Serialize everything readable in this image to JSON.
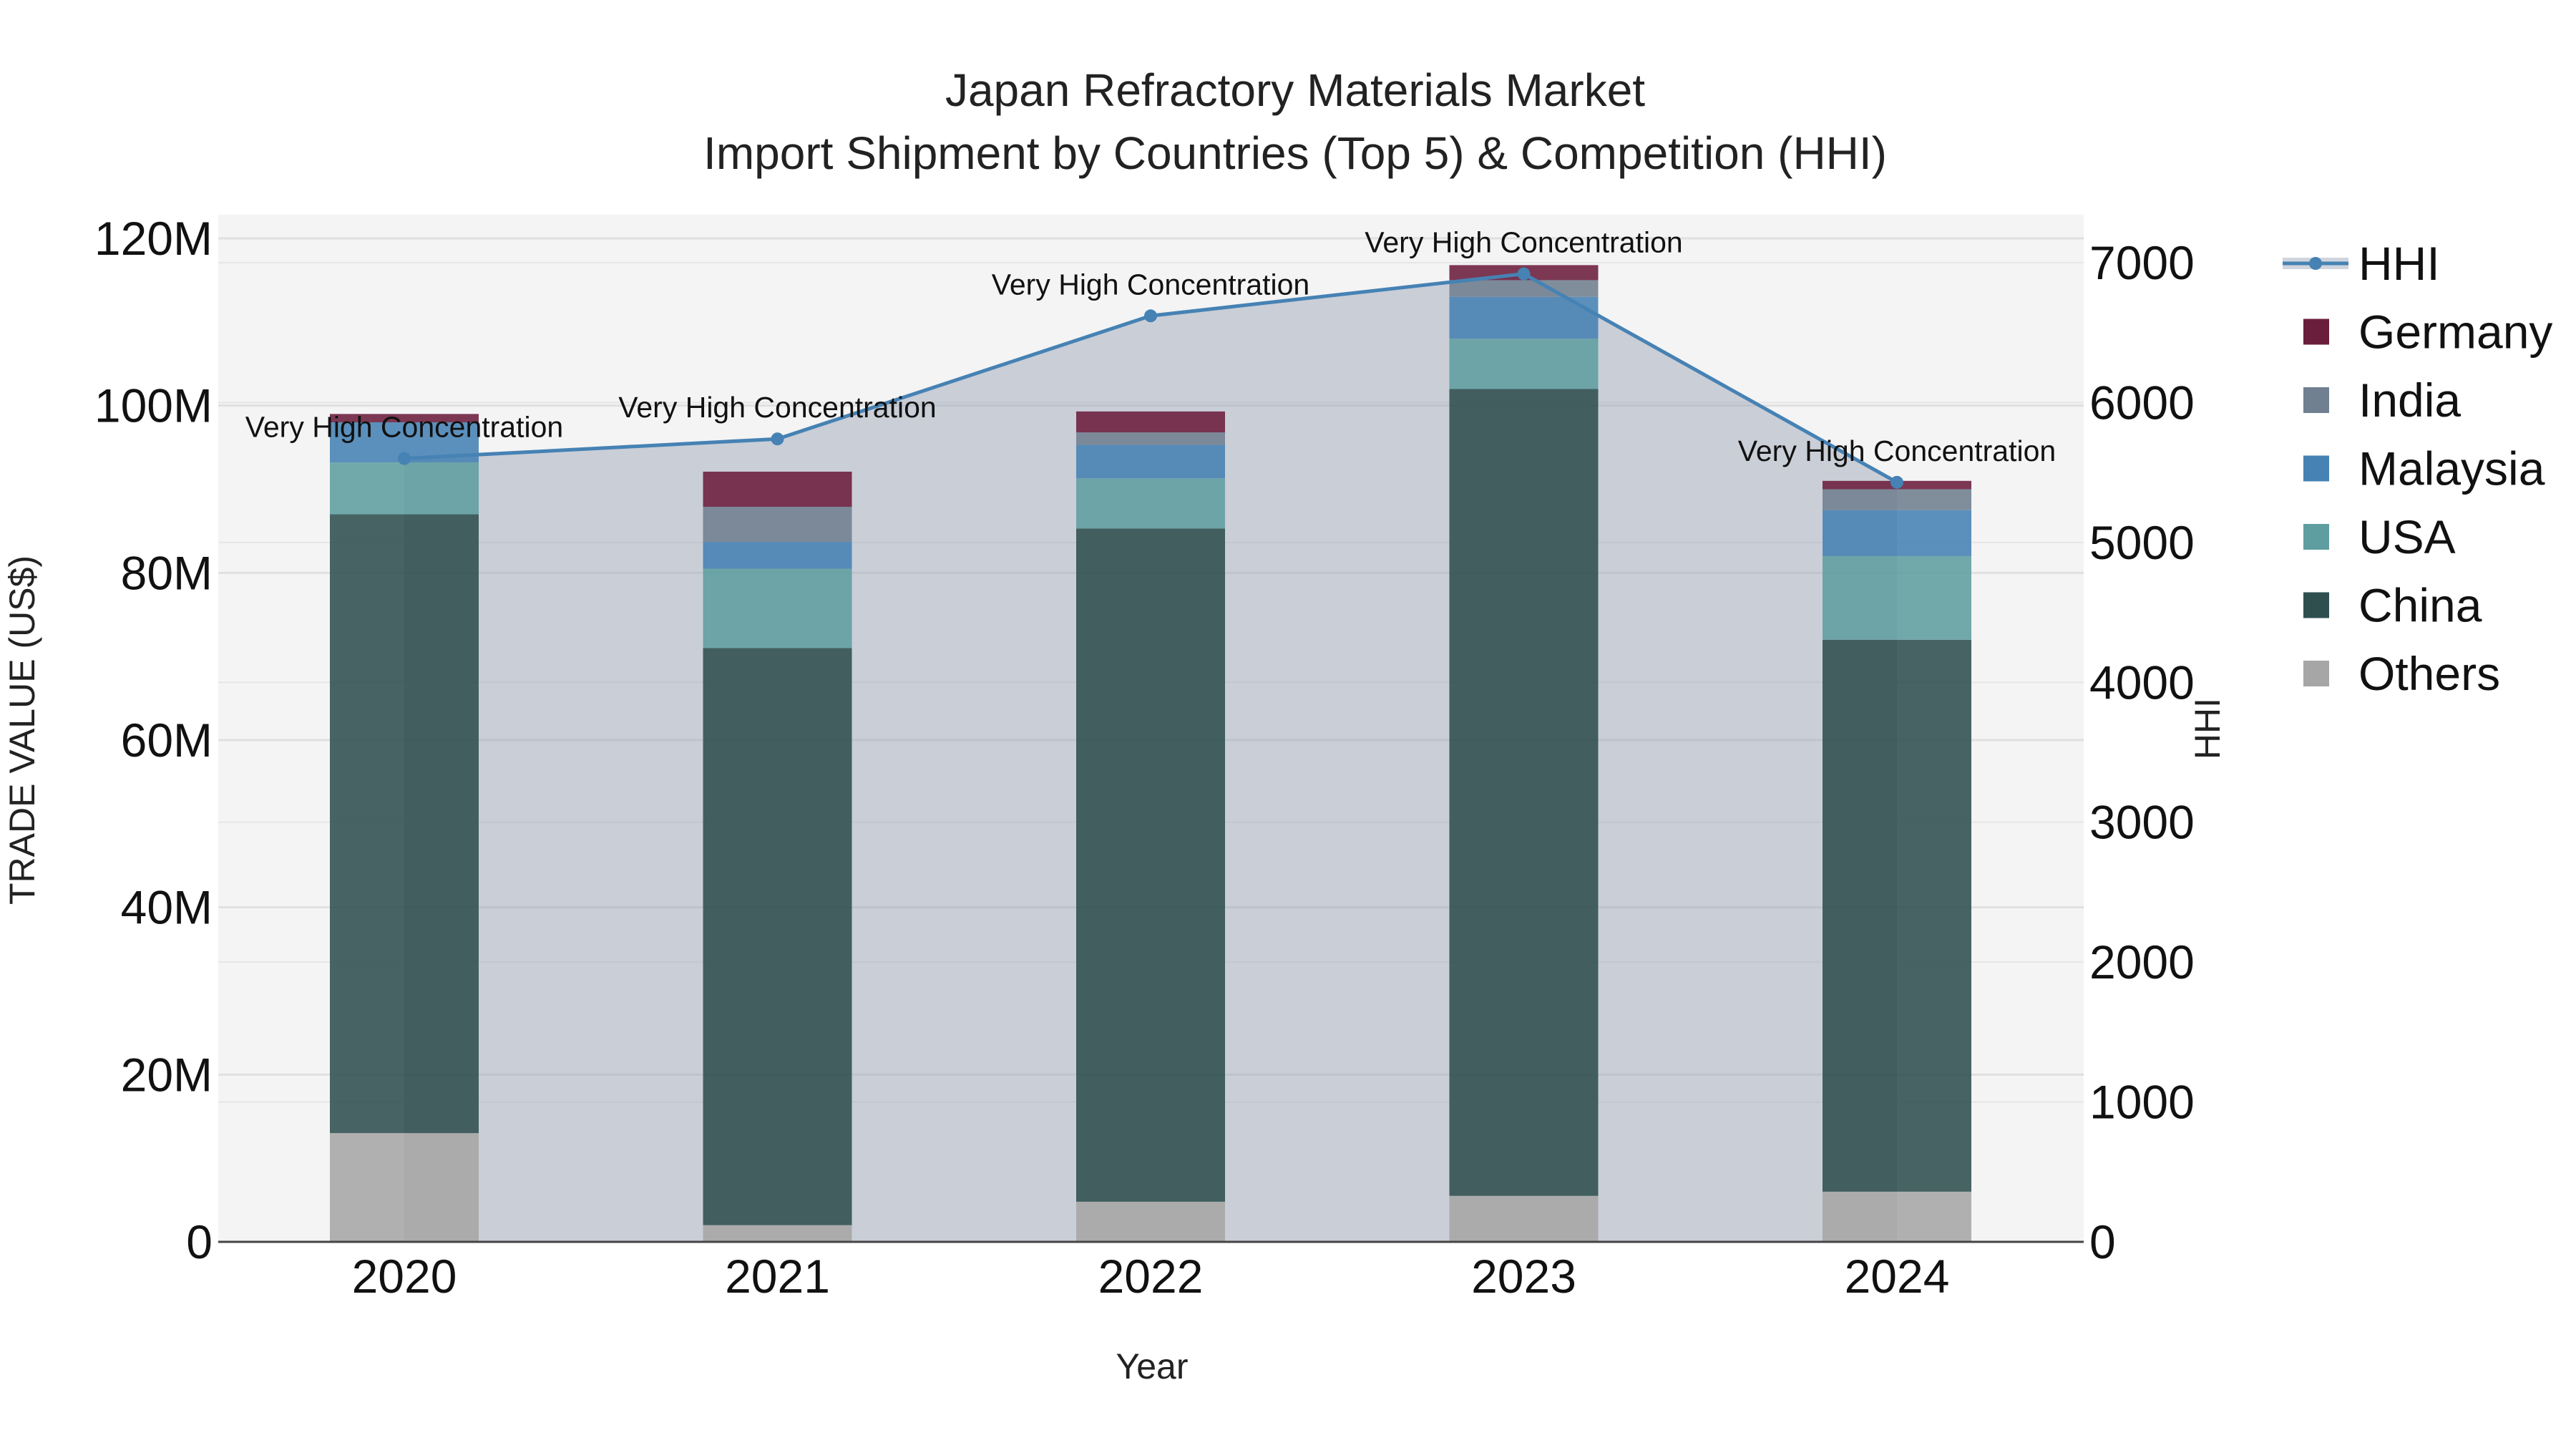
{
  "chart_data": {
    "type": "bar",
    "title_lines": [
      "Japan Refractory Materials Market",
      "Import Shipment by Countries (Top 5) & Competition (HHI)"
    ],
    "xlabel": "Year",
    "ylabel": "TRADE VALUE (US$)",
    "y2label": "HHI",
    "categories": [
      "2020",
      "2021",
      "2022",
      "2023",
      "2024"
    ],
    "ylim": [
      0,
      120000000
    ],
    "yticks": [
      0,
      20000000,
      40000000,
      60000000,
      80000000,
      100000000,
      120000000
    ],
    "ytick_labels": [
      "0",
      "20M",
      "40M",
      "60M",
      "80M",
      "100M",
      "120M"
    ],
    "y2lim": [
      0,
      7100
    ],
    "y2ticks": [
      0,
      1000,
      2000,
      3000,
      4000,
      5000,
      6000,
      7000
    ],
    "y2tick_labels": [
      "0",
      "1000",
      "2000",
      "3000",
      "4000",
      "5000",
      "6000",
      "7000"
    ],
    "series": [
      {
        "name": "Others",
        "color": "#a6a6a6",
        "values": [
          13000000,
          2000000,
          4800000,
          5500000,
          6000000
        ]
      },
      {
        "name": "China",
        "color": "#2f4f4f",
        "values": [
          74000000,
          69000000,
          80500000,
          96500000,
          66000000
        ]
      },
      {
        "name": "USA",
        "color": "#5f9ea0",
        "values": [
          6200000,
          9500000,
          6000000,
          6000000,
          10000000
        ]
      },
      {
        "name": "Malaysia",
        "color": "#4682b4",
        "values": [
          4800000,
          3200000,
          4000000,
          5000000,
          5500000
        ]
      },
      {
        "name": "India",
        "color": "#708090",
        "values": [
          0,
          4200000,
          1500000,
          2000000,
          2500000
        ]
      },
      {
        "name": "Germany",
        "color": "#6b1e3c",
        "values": [
          1000000,
          4200000,
          2500000,
          1800000,
          1000000
        ]
      }
    ],
    "hhi": {
      "name": "HHI",
      "color": "#4682b4",
      "values": [
        5600,
        5740,
        6620,
        6920,
        5430
      ],
      "labels": [
        "Very High Concentration",
        "Very High Concentration",
        "Very High Concentration",
        "Very High Concentration",
        "Very High Concentration"
      ]
    },
    "legend_order": [
      "HHI",
      "Germany",
      "India",
      "Malaysia",
      "USA",
      "China",
      "Others"
    ],
    "legend_position": "right",
    "grid": true
  }
}
